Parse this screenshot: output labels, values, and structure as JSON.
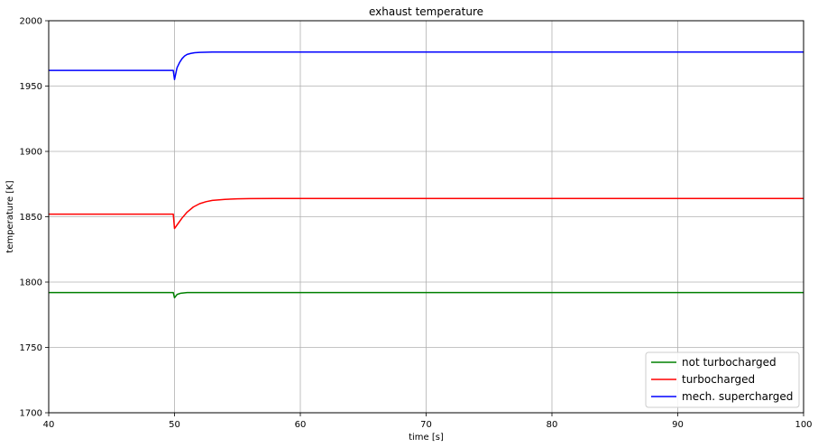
{
  "chart_data": {
    "type": "line",
    "title": "exhaust temperature",
    "xlabel": "time [s]",
    "ylabel": "temperature [K]",
    "xlim": [
      40,
      100
    ],
    "ylim": [
      1700,
      2000
    ],
    "xticks": [
      "40",
      "50",
      "60",
      "70",
      "80",
      "90",
      "100"
    ],
    "yticks": [
      "1700",
      "1750",
      "1800",
      "1850",
      "1900",
      "1950",
      "2000"
    ],
    "grid": true,
    "legend_position": "bottom-right",
    "series": [
      {
        "name": "not turbocharged",
        "color": "#008000",
        "x": [
          40,
          49.9,
          50,
          50.2,
          50.5,
          51,
          52,
          60,
          70,
          80,
          90,
          100
        ],
        "y": [
          1792,
          1792,
          1788,
          1790.5,
          1791.5,
          1792,
          1792,
          1792,
          1792,
          1792,
          1792,
          1792
        ]
      },
      {
        "name": "turbocharged",
        "color": "#ff0000",
        "x": [
          40,
          49.9,
          50,
          50.3,
          50.6,
          51,
          51.5,
          52,
          52.5,
          53,
          54,
          55,
          56,
          58,
          60,
          70,
          80,
          90,
          100
        ],
        "y": [
          1852,
          1852,
          1841,
          1845,
          1849,
          1853.5,
          1857.5,
          1860,
          1861.5,
          1862.5,
          1863.3,
          1863.7,
          1863.9,
          1864,
          1864,
          1864,
          1864,
          1864,
          1864
        ]
      },
      {
        "name": "mech. supercharged",
        "color": "#0000ff",
        "x": [
          40,
          49.9,
          50,
          50.2,
          50.4,
          50.6,
          50.8,
          51,
          51.3,
          51.6,
          52,
          53,
          55,
          60,
          70,
          80,
          90,
          100
        ],
        "y": [
          1962,
          1962,
          1955,
          1964,
          1968,
          1971,
          1973,
          1974.2,
          1975,
          1975.5,
          1975.8,
          1976,
          1976,
          1976,
          1976,
          1976,
          1976,
          1976
        ]
      }
    ]
  }
}
